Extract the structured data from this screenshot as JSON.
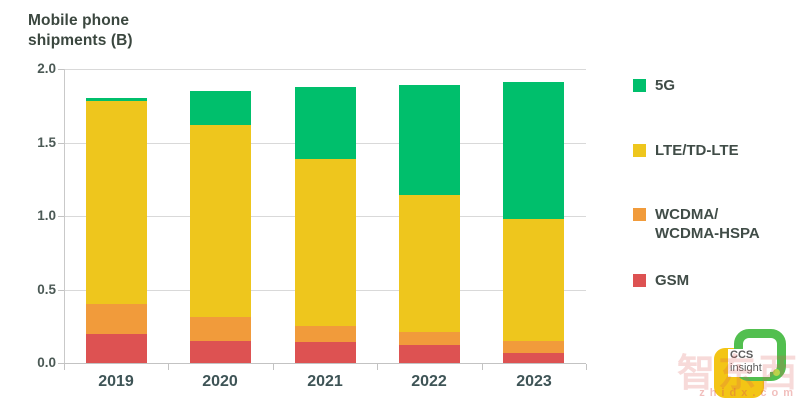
{
  "header": {
    "title": "Mobile phone\nshipments (B)"
  },
  "chart_data": {
    "type": "bar",
    "stacked": true,
    "title": "Mobile phone shipments (B)",
    "unit": "billions of units",
    "categories": [
      "2019",
      "2020",
      "2021",
      "2022",
      "2023"
    ],
    "series": [
      {
        "name": "GSM",
        "color": "#dd5252",
        "values": [
          0.2,
          0.15,
          0.14,
          0.12,
          0.07
        ]
      },
      {
        "name": "WCDMA/WCDMA-HSPA",
        "color": "#f19b3b",
        "values": [
          0.2,
          0.16,
          0.11,
          0.09,
          0.08
        ]
      },
      {
        "name": "LTE/TD-LTE",
        "color": "#eec61d",
        "values": [
          1.38,
          1.31,
          1.14,
          0.93,
          0.83
        ]
      },
      {
        "name": "5G",
        "color": "#00bf6c",
        "values": [
          0.02,
          0.23,
          0.49,
          0.75,
          0.93
        ]
      }
    ],
    "totals": [
      1.8,
      1.85,
      1.88,
      1.89,
      1.91
    ],
    "ylim": [
      0,
      2.0
    ],
    "ytick_labels": [
      "2.0",
      "1.5",
      "1.0",
      "0.5",
      "0.0"
    ],
    "grid": true,
    "legend_position": "right"
  },
  "legend": {
    "items": [
      {
        "label": "5G",
        "color": "#00bf6c"
      },
      {
        "label": "LTE/TD-LTE",
        "color": "#eec61d"
      },
      {
        "label": "WCDMA/\nWCDMA-HSPA",
        "color": "#f19b3b"
      },
      {
        "label": "GSM",
        "color": "#dd5252"
      }
    ]
  },
  "branding": {
    "logo_text_line1": "CCS",
    "logo_text_line2": "insight",
    "watermark_cn": "智东西",
    "watermark_url": "zhidx.com",
    "logo_green": "#52bf4f",
    "logo_yellow": "#f3c515",
    "watermark_color": "#db5752"
  }
}
